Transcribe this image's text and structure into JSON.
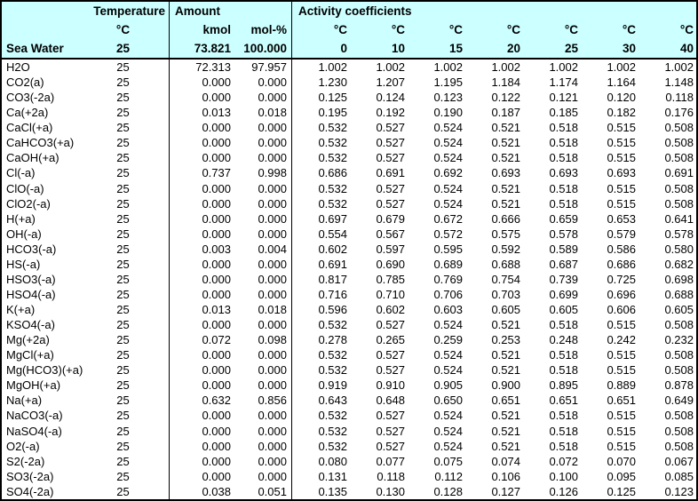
{
  "colors": {
    "header_bg": "#CCFFFF",
    "border": "#000000",
    "text": "#000000",
    "data_bg": "#FFFFFF"
  },
  "table": {
    "header": {
      "temperature_label": "Temperature",
      "amount_label": "Amount",
      "activity_label": "Activity coefficients",
      "temp_unit": "°C",
      "kmol_unit": "kmol",
      "molp_unit": "mol-%",
      "act_units": [
        "°C",
        "°C",
        "°C",
        "°C",
        "°C",
        "°C",
        "°C"
      ]
    },
    "seawater": {
      "name": "Sea Water",
      "temp": "25",
      "kmol": "73.821",
      "molp": "100.000",
      "act_temps": [
        "0",
        "10",
        "15",
        "20",
        "25",
        "30",
        "40"
      ]
    },
    "rows": [
      {
        "species": "H2O",
        "temp": "25",
        "kmol": "72.313",
        "molp": "97.957",
        "act": [
          "1.002",
          "1.002",
          "1.002",
          "1.002",
          "1.002",
          "1.002",
          "1.002"
        ]
      },
      {
        "species": "CO2(a)",
        "temp": "25",
        "kmol": "0.000",
        "molp": "0.000",
        "act": [
          "1.230",
          "1.207",
          "1.195",
          "1.184",
          "1.174",
          "1.164",
          "1.148"
        ]
      },
      {
        "species": "CO3(-2a)",
        "temp": "25",
        "kmol": "0.000",
        "molp": "0.000",
        "act": [
          "0.125",
          "0.124",
          "0.123",
          "0.122",
          "0.121",
          "0.120",
          "0.118"
        ]
      },
      {
        "species": "Ca(+2a)",
        "temp": "25",
        "kmol": "0.013",
        "molp": "0.018",
        "act": [
          "0.195",
          "0.192",
          "0.190",
          "0.187",
          "0.185",
          "0.182",
          "0.176"
        ]
      },
      {
        "species": "CaCl(+a)",
        "temp": "25",
        "kmol": "0.000",
        "molp": "0.000",
        "act": [
          "0.532",
          "0.527",
          "0.524",
          "0.521",
          "0.518",
          "0.515",
          "0.508"
        ]
      },
      {
        "species": "CaHCO3(+a)",
        "temp": "25",
        "kmol": "0.000",
        "molp": "0.000",
        "act": [
          "0.532",
          "0.527",
          "0.524",
          "0.521",
          "0.518",
          "0.515",
          "0.508"
        ]
      },
      {
        "species": "CaOH(+a)",
        "temp": "25",
        "kmol": "0.000",
        "molp": "0.000",
        "act": [
          "0.532",
          "0.527",
          "0.524",
          "0.521",
          "0.518",
          "0.515",
          "0.508"
        ]
      },
      {
        "species": "Cl(-a)",
        "temp": "25",
        "kmol": "0.737",
        "molp": "0.998",
        "act": [
          "0.686",
          "0.691",
          "0.692",
          "0.693",
          "0.693",
          "0.693",
          "0.691"
        ]
      },
      {
        "species": "ClO(-a)",
        "temp": "25",
        "kmol": "0.000",
        "molp": "0.000",
        "act": [
          "0.532",
          "0.527",
          "0.524",
          "0.521",
          "0.518",
          "0.515",
          "0.508"
        ]
      },
      {
        "species": "ClO2(-a)",
        "temp": "25",
        "kmol": "0.000",
        "molp": "0.000",
        "act": [
          "0.532",
          "0.527",
          "0.524",
          "0.521",
          "0.518",
          "0.515",
          "0.508"
        ]
      },
      {
        "species": "H(+a)",
        "temp": "25",
        "kmol": "0.000",
        "molp": "0.000",
        "act": [
          "0.697",
          "0.679",
          "0.672",
          "0.666",
          "0.659",
          "0.653",
          "0.641"
        ]
      },
      {
        "species": "OH(-a)",
        "temp": "25",
        "kmol": "0.000",
        "molp": "0.000",
        "act": [
          "0.554",
          "0.567",
          "0.572",
          "0.575",
          "0.578",
          "0.579",
          "0.578"
        ]
      },
      {
        "species": "HCO3(-a)",
        "temp": "25",
        "kmol": "0.003",
        "molp": "0.004",
        "act": [
          "0.602",
          "0.597",
          "0.595",
          "0.592",
          "0.589",
          "0.586",
          "0.580"
        ]
      },
      {
        "species": "HS(-a)",
        "temp": "25",
        "kmol": "0.000",
        "molp": "0.000",
        "act": [
          "0.691",
          "0.690",
          "0.689",
          "0.688",
          "0.687",
          "0.686",
          "0.682"
        ]
      },
      {
        "species": "HSO3(-a)",
        "temp": "25",
        "kmol": "0.000",
        "molp": "0.000",
        "act": [
          "0.817",
          "0.785",
          "0.769",
          "0.754",
          "0.739",
          "0.725",
          "0.698"
        ]
      },
      {
        "species": "HSO4(-a)",
        "temp": "25",
        "kmol": "0.000",
        "molp": "0.000",
        "act": [
          "0.716",
          "0.710",
          "0.706",
          "0.703",
          "0.699",
          "0.696",
          "0.688"
        ]
      },
      {
        "species": "K(+a)",
        "temp": "25",
        "kmol": "0.013",
        "molp": "0.018",
        "act": [
          "0.596",
          "0.602",
          "0.603",
          "0.605",
          "0.605",
          "0.606",
          "0.605"
        ]
      },
      {
        "species": "KSO4(-a)",
        "temp": "25",
        "kmol": "0.000",
        "molp": "0.000",
        "act": [
          "0.532",
          "0.527",
          "0.524",
          "0.521",
          "0.518",
          "0.515",
          "0.508"
        ]
      },
      {
        "species": "Mg(+2a)",
        "temp": "25",
        "kmol": "0.072",
        "molp": "0.098",
        "act": [
          "0.278",
          "0.265",
          "0.259",
          "0.253",
          "0.248",
          "0.242",
          "0.232"
        ]
      },
      {
        "species": "MgCl(+a)",
        "temp": "25",
        "kmol": "0.000",
        "molp": "0.000",
        "act": [
          "0.532",
          "0.527",
          "0.524",
          "0.521",
          "0.518",
          "0.515",
          "0.508"
        ]
      },
      {
        "species": "Mg(HCO3)(+a)",
        "temp": "25",
        "kmol": "0.000",
        "molp": "0.000",
        "act": [
          "0.532",
          "0.527",
          "0.524",
          "0.521",
          "0.518",
          "0.515",
          "0.508"
        ]
      },
      {
        "species": "MgOH(+a)",
        "temp": "25",
        "kmol": "0.000",
        "molp": "0.000",
        "act": [
          "0.919",
          "0.910",
          "0.905",
          "0.900",
          "0.895",
          "0.889",
          "0.878"
        ]
      },
      {
        "species": "Na(+a)",
        "temp": "25",
        "kmol": "0.632",
        "molp": "0.856",
        "act": [
          "0.643",
          "0.648",
          "0.650",
          "0.651",
          "0.651",
          "0.651",
          "0.649"
        ]
      },
      {
        "species": "NaCO3(-a)",
        "temp": "25",
        "kmol": "0.000",
        "molp": "0.000",
        "act": [
          "0.532",
          "0.527",
          "0.524",
          "0.521",
          "0.518",
          "0.515",
          "0.508"
        ]
      },
      {
        "species": "NaSO4(-a)",
        "temp": "25",
        "kmol": "0.000",
        "molp": "0.000",
        "act": [
          "0.532",
          "0.527",
          "0.524",
          "0.521",
          "0.518",
          "0.515",
          "0.508"
        ]
      },
      {
        "species": "O2(-a)",
        "temp": "25",
        "kmol": "0.000",
        "molp": "0.000",
        "act": [
          "0.532",
          "0.527",
          "0.524",
          "0.521",
          "0.518",
          "0.515",
          "0.508"
        ]
      },
      {
        "species": "S2(-2a)",
        "temp": "25",
        "kmol": "0.000",
        "molp": "0.000",
        "act": [
          "0.080",
          "0.077",
          "0.075",
          "0.074",
          "0.072",
          "0.070",
          "0.067"
        ]
      },
      {
        "species": "SO3(-2a)",
        "temp": "25",
        "kmol": "0.000",
        "molp": "0.000",
        "act": [
          "0.131",
          "0.118",
          "0.112",
          "0.106",
          "0.100",
          "0.095",
          "0.085"
        ]
      },
      {
        "species": "SO4(-2a)",
        "temp": "25",
        "kmol": "0.038",
        "molp": "0.051",
        "act": [
          "0.135",
          "0.130",
          "0.128",
          "0.127",
          "0.126",
          "0.125",
          "0.123"
        ]
      }
    ]
  }
}
